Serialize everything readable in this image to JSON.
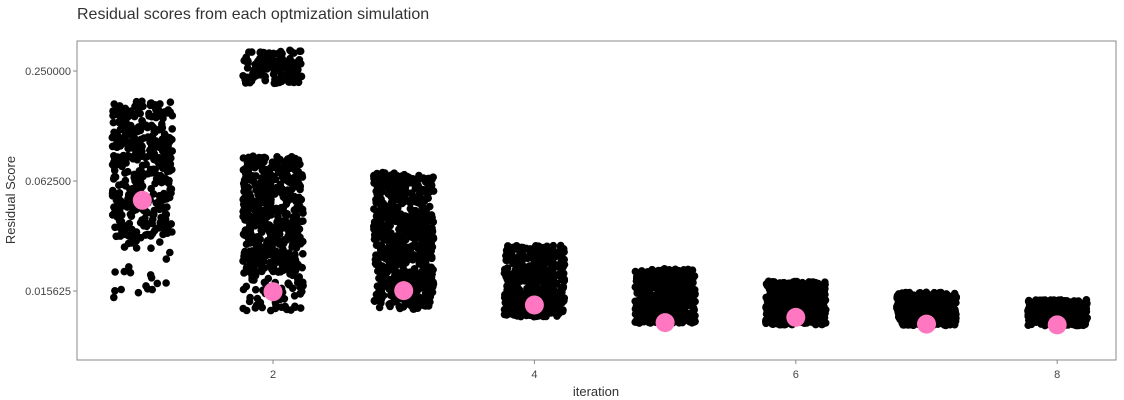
{
  "chart_data": {
    "type": "scatter",
    "title": "Residual scores from each optmization simulation",
    "xlabel": "iteration",
    "ylabel": "Residual Score",
    "x_scale": "linear",
    "y_scale": "log",
    "xlim": [
      0.5,
      8.45
    ],
    "ylim": [
      0.00655,
      0.365
    ],
    "x_ticks": [
      2,
      4,
      6,
      8
    ],
    "y_ticks": [
      0.015625,
      0.0625,
      0.25
    ],
    "x_tick_labels": [
      "2",
      "4",
      "6",
      "8"
    ],
    "y_tick_labels": [
      "0.015625",
      "0.062500",
      "0.250000"
    ],
    "grid": false,
    "legend": "none",
    "point_color": "#000000",
    "highlight_color": "#ff77c0",
    "frame_color": "#888888",
    "iterations": [
      {
        "x": 1,
        "highlight": 0.049,
        "ranges": [
          {
            "lo": 0.0305,
            "hi": 0.172,
            "weight": 400
          },
          {
            "lo": 0.0136,
            "hi": 0.0305,
            "weight": 25
          }
        ]
      },
      {
        "x": 2,
        "highlight": 0.0155,
        "ranges": [
          {
            "lo": 0.214,
            "hi": 0.325,
            "weight": 120
          },
          {
            "lo": 0.0195,
            "hi": 0.0855,
            "weight": 500
          },
          {
            "lo": 0.0122,
            "hi": 0.0195,
            "weight": 60
          }
        ]
      },
      {
        "x": 3,
        "highlight": 0.0157,
        "ranges": [
          {
            "lo": 0.0124,
            "hi": 0.0695,
            "weight": 600
          }
        ]
      },
      {
        "x": 4,
        "highlight": 0.0131,
        "ranges": [
          {
            "lo": 0.0113,
            "hi": 0.0277,
            "weight": 500
          }
        ]
      },
      {
        "x": 5,
        "highlight": 0.0105,
        "ranges": [
          {
            "lo": 0.0104,
            "hi": 0.0207,
            "weight": 450
          }
        ]
      },
      {
        "x": 6,
        "highlight": 0.0112,
        "ranges": [
          {
            "lo": 0.0102,
            "hi": 0.0177,
            "weight": 420
          }
        ]
      },
      {
        "x": 7,
        "highlight": 0.0103,
        "ranges": [
          {
            "lo": 0.0101,
            "hi": 0.0154,
            "weight": 400
          }
        ]
      },
      {
        "x": 8,
        "highlight": 0.0102,
        "ranges": [
          {
            "lo": 0.0101,
            "hi": 0.014,
            "weight": 380
          }
        ]
      }
    ]
  }
}
